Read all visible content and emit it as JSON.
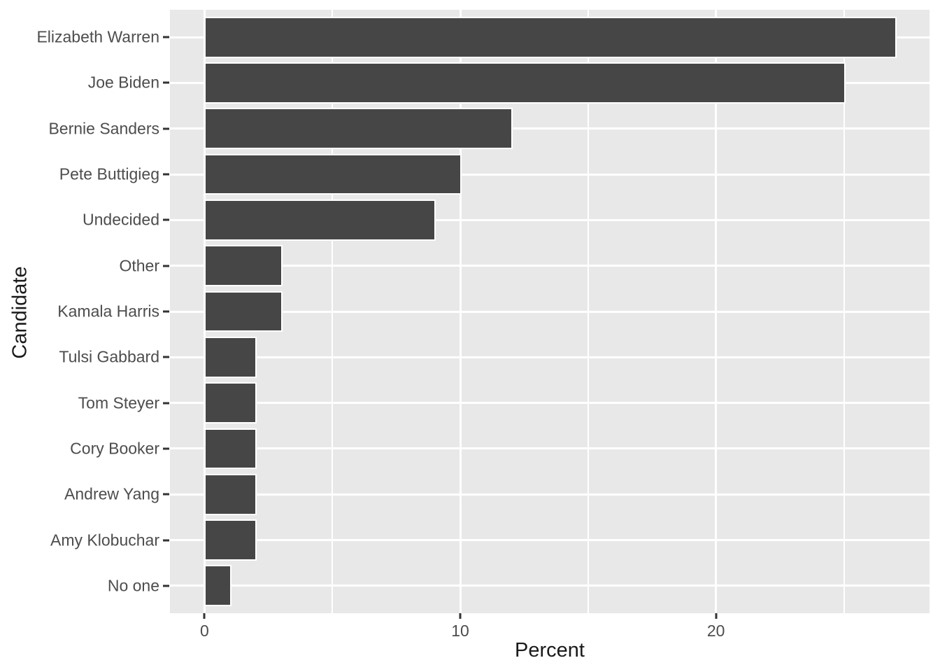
{
  "chart_data": {
    "type": "bar",
    "orientation": "horizontal",
    "title": "",
    "xlabel": "Percent",
    "ylabel": "Candidate",
    "categories": [
      "Elizabeth Warren",
      "Joe Biden",
      "Bernie Sanders",
      "Pete Buttigieg",
      "Undecided",
      "Other",
      "Kamala Harris",
      "Tulsi Gabbard",
      "Tom Steyer",
      "Cory Booker",
      "Andrew Yang",
      "Amy Klobuchar",
      "No one"
    ],
    "values": [
      27,
      25,
      12,
      10,
      9,
      3,
      3,
      2,
      2,
      2,
      2,
      2,
      1
    ],
    "x_axis": {
      "tick_values": [
        0,
        10,
        20
      ],
      "tick_labels": [
        "0",
        "10",
        "20"
      ],
      "minor_tick_values": [
        5,
        15,
        25
      ],
      "display_min": -1.35,
      "display_max": 28.35
    },
    "grid": true,
    "legend": false,
    "bar_width_fraction": 0.9,
    "colors": {
      "bar_fill": "#464646",
      "bar_stroke": "#ffffff",
      "panel_background": "#E8E8E8",
      "gridline": "#ffffff",
      "axis_text": "#4D4D4D",
      "axis_title": "#1a1a1a",
      "tick_mark": "#333333",
      "figure_background": "#ffffff"
    }
  }
}
